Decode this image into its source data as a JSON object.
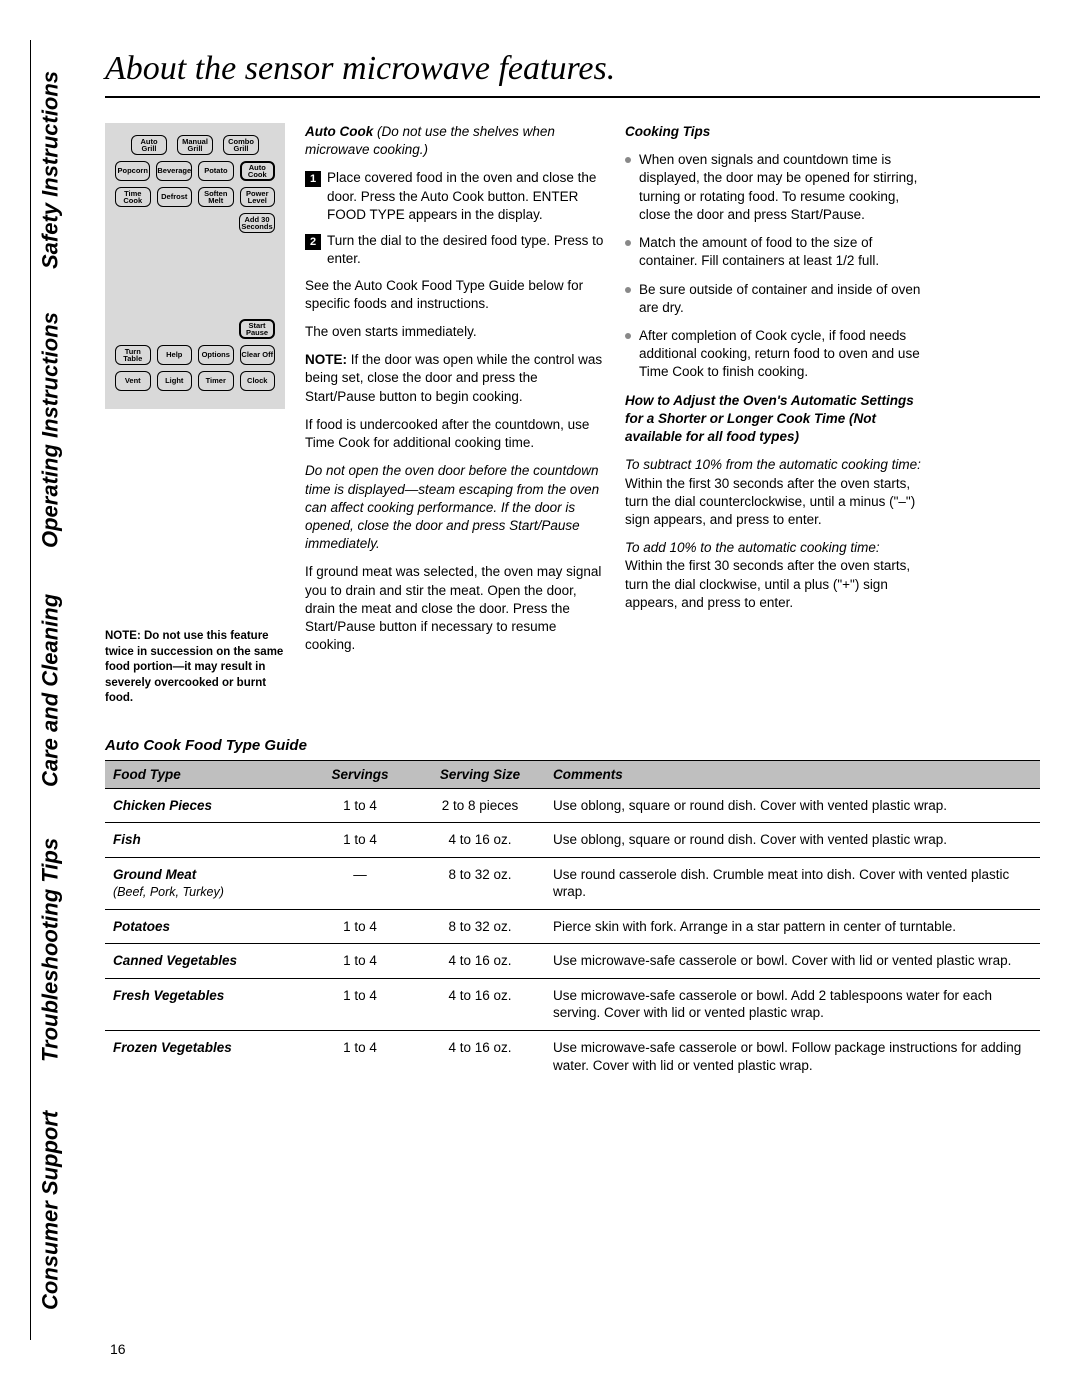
{
  "page_number": "16",
  "title": "About the sensor microwave features.",
  "side_tabs": [
    "Safety Instructions",
    "Operating Instructions",
    "Care and Cleaning",
    "Troubleshooting Tips",
    "Consumer Support"
  ],
  "keypad": {
    "row1": [
      "Auto Grill",
      "Manual Grill",
      "Combo Grill"
    ],
    "row2": [
      "Popcorn",
      "Beverage",
      "Potato",
      "Auto Cook"
    ],
    "row3": [
      "Time Cook",
      "Defrost",
      "Soften Melt",
      "Power Level"
    ],
    "row4": [
      "Add 30 Seconds"
    ],
    "row5": [
      "Start Pause"
    ],
    "row6": [
      "Turn Table",
      "Help",
      "Options",
      "Clear Off"
    ],
    "row7": [
      "Vent",
      "Light",
      "Timer",
      "Clock"
    ]
  },
  "panel_note": "NOTE: Do not use this feature twice in succession on the same food portion—it may result in severely overcooked or burnt food.",
  "mid": {
    "heading_prefix": "Auto Cook",
    "heading_suffix": " (Do not use the shelves when microwave cooking.)",
    "step1": "Place covered food in the oven and close the door. Press the Auto Cook button. ENTER FOOD TYPE  appears in the display.",
    "step2": "Turn the dial to the desired food type. Press to enter.",
    "p1": "See the Auto Cook Food Type Guide  below for specific foods and instructions.",
    "p2": "The oven starts immediately.",
    "p3_a": "NOTE:",
    "p3_b": " If the door was open while the control was being set, close the door and press the Start/Pause button to begin cooking.",
    "p4": "If food is undercooked after the countdown, use Time Cook for additional cooking time.",
    "p5": "Do not open the oven door before the countdown time is displayed—steam escaping from the oven can affect cooking performance. If the door is opened, close the door and press Start/Pause immediately.",
    "p6": "If ground meat was selected, the oven may signal you to drain and stir the meat. Open the door, drain the meat and close the door. Press the Start/Pause button if necessary to resume cooking."
  },
  "right": {
    "heading": "Cooking Tips",
    "tips": [
      "When oven signals and countdown time is displayed, the door may be opened for stirring, turning or rotating food. To resume cooking, close the door and press Start/Pause.",
      "Match the amount of food to the size of container. Fill containers at least 1/2 full.",
      "Be sure outside of container and inside of oven are dry.",
      "After completion of Cook cycle, if food needs additional cooking, return food to oven and use Time Cook to finish cooking."
    ],
    "sub2": "How to Adjust the Oven's Automatic Settings for a Shorter or Longer Cook Time (Not available for all food types)",
    "p_sub": "To subtract 10% from the automatic cooking time:",
    "p_sub_body": "Within the first 30 seconds after the oven starts, turn the dial counterclockwise, until a minus (\"–\") sign appears, and press to enter.",
    "p_add": "To add 10% to the automatic cooking time:",
    "p_add_body": "Within the first 30 seconds after the oven starts, turn the dial clockwise, until a plus (\"+\") sign appears, and press to enter."
  },
  "guide": {
    "title": "Auto Cook Food Type Guide",
    "headers": [
      "Food Type",
      "Servings",
      "Serving Size",
      "Comments"
    ],
    "rows": [
      {
        "ft": "Chicken Pieces",
        "sub": "",
        "sv": "1 to 4",
        "sz": "2 to 8 pieces",
        "cm": "Use oblong, square or round dish. Cover with vented plastic wrap."
      },
      {
        "ft": "Fish",
        "sub": "",
        "sv": "1 to 4",
        "sz": "4 to 16 oz.",
        "cm": "Use oblong, square or round dish. Cover with vented plastic wrap."
      },
      {
        "ft": "Ground Meat",
        "sub": "(Beef, Pork, Turkey)",
        "sv": "—",
        "sz": "8 to 32 oz.",
        "cm": "Use round casserole dish. Crumble meat into dish. Cover with vented plastic wrap."
      },
      {
        "ft": "Potatoes",
        "sub": "",
        "sv": "1 to 4",
        "sz": "8 to 32 oz.",
        "cm": "Pierce skin with fork. Arrange in a star pattern in center of turntable."
      },
      {
        "ft": "Canned Vegetables",
        "sub": "",
        "sv": "1 to 4",
        "sz": "4 to 16 oz.",
        "cm": "Use microwave-safe casserole or bowl. Cover with lid or vented plastic wrap."
      },
      {
        "ft": "Fresh Vegetables",
        "sub": "",
        "sv": "1 to 4",
        "sz": "4 to 16 oz.",
        "cm": "Use microwave-safe casserole or bowl. Add 2 tablespoons water for each serving. Cover with lid or vented plastic wrap."
      },
      {
        "ft": "Frozen Vegetables",
        "sub": "",
        "sv": "1 to 4",
        "sz": "4 to 16 oz.",
        "cm": "Use microwave-safe casserole or bowl. Follow package instructions for adding water. Cover with lid or vented plastic wrap."
      }
    ]
  }
}
